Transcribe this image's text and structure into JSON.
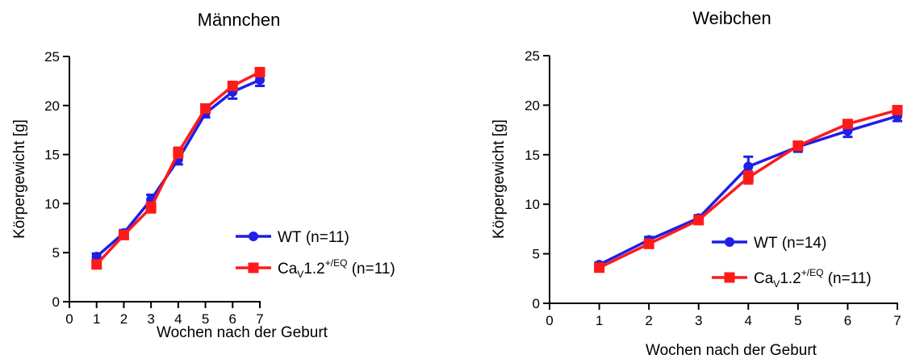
{
  "chart_data": [
    {
      "type": "line",
      "title": "Männchen",
      "xlabel": "Wochen nach der Geburt",
      "ylabel": "Körpergewicht [g]",
      "xlim": [
        0,
        7
      ],
      "ylim": [
        0,
        25
      ],
      "xticks": [
        "0",
        "1",
        "2",
        "3",
        "4",
        "5",
        "6",
        "7"
      ],
      "yticks": [
        "0",
        "5",
        "10",
        "15",
        "20",
        "25"
      ],
      "x": [
        1,
        2,
        3,
        4,
        5,
        6,
        7
      ],
      "legend_position": "right",
      "grid": false,
      "series": [
        {
          "label_main": "WT",
          "label_sub": "",
          "label_sup": "",
          "label_n": "(n=11)",
          "color": "#1f1fe6",
          "marker": "circle",
          "values": [
            4.6,
            7.0,
            10.4,
            14.5,
            19.2,
            21.4,
            22.6
          ],
          "errors": [
            0.3,
            0.3,
            0.5,
            0.5,
            0.4,
            0.7,
            0.6
          ]
        },
        {
          "label_main": "Ca",
          "label_sub": "V",
          "label_sup": "+/EQ",
          "label_post": "1.2",
          "label_n": "(n=11)",
          "color": "#ff1a1a",
          "marker": "square",
          "values": [
            3.8,
            6.8,
            9.6,
            15.2,
            19.7,
            22.0,
            23.4
          ],
          "errors": [
            0.3,
            0.3,
            0.5,
            0.5,
            0.4,
            0.4,
            0.4
          ]
        }
      ]
    },
    {
      "type": "line",
      "title": "Weibchen",
      "xlabel": "Wochen nach der Geburt",
      "ylabel": "Körpergewicht [g]",
      "xlim": [
        0,
        7
      ],
      "ylim": [
        0,
        25
      ],
      "xticks": [
        "0",
        "1",
        "2",
        "3",
        "4",
        "5",
        "6",
        "7"
      ],
      "yticks": [
        "0",
        "5",
        "10",
        "15",
        "20",
        "25"
      ],
      "x": [
        1,
        2,
        3,
        4,
        5,
        6,
        7
      ],
      "legend_position": "bottom-right",
      "grid": false,
      "series": [
        {
          "label_main": "WT",
          "label_sub": "",
          "label_sup": "",
          "label_n": "(n=14)",
          "color": "#1f1fe6",
          "marker": "circle",
          "values": [
            3.9,
            6.4,
            8.6,
            13.8,
            15.8,
            17.4,
            18.9
          ],
          "errors": [
            0.2,
            0.3,
            0.3,
            1.0,
            0.5,
            0.6,
            0.5
          ]
        },
        {
          "label_main": "Ca",
          "label_sub": "V",
          "label_sup": "+/EQ",
          "label_post": "1.2",
          "label_n": "(n=11)",
          "color": "#ff1a1a",
          "marker": "square",
          "values": [
            3.6,
            6.0,
            8.4,
            12.7,
            15.9,
            18.1,
            19.5
          ],
          "errors": [
            0.2,
            0.3,
            0.3,
            0.6,
            0.4,
            0.3,
            0.3
          ]
        }
      ]
    }
  ]
}
